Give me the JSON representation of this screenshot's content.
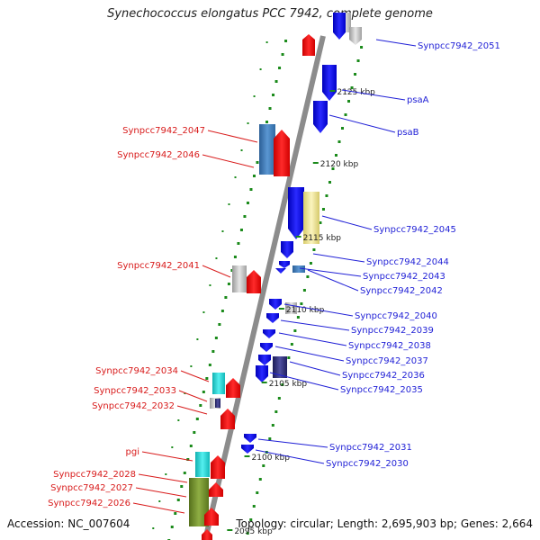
{
  "title": "Synechococcus elongatus PCC 7942, complete genome",
  "accession": "Accession: NC_007604",
  "topology": "Topology: circular; Length: 2,695,903 bp; Genes: 2,664",
  "colors": {
    "backbone": "#8c8c8c",
    "forward_label": "#1f1fd6",
    "reverse_label": "#d81b1b",
    "blue_gene": "#1212e6",
    "red_gene": "#ee1111",
    "gray_gene": "#bdbdbd",
    "steelblue_gene": "#3f7fbf",
    "yellow_gene": "#ece39a",
    "cyan_gene": "#22d4d4",
    "olive_gene": "#6f8f2a",
    "navy_gene": "#2a2a70",
    "tick_green": "#1a8a1a"
  },
  "scale_ticks": [
    {
      "label": "2125 kbp"
    },
    {
      "label": "2120 kbp"
    },
    {
      "label": "2115 kbp"
    },
    {
      "label": "2110 kbp"
    },
    {
      "label": "2105 kbp"
    },
    {
      "label": "2100 kbp"
    },
    {
      "label": "2095 kbp"
    }
  ],
  "forward_labels": [
    {
      "text": "Synpcc7942_2051"
    },
    {
      "text": "psaA"
    },
    {
      "text": "psaB"
    },
    {
      "text": "Synpcc7942_2045"
    },
    {
      "text": "Synpcc7942_2044"
    },
    {
      "text": "Synpcc7942_2043"
    },
    {
      "text": "Synpcc7942_2042"
    },
    {
      "text": "Synpcc7942_2040"
    },
    {
      "text": "Synpcc7942_2039"
    },
    {
      "text": "Synpcc7942_2038"
    },
    {
      "text": "Synpcc7942_2037"
    },
    {
      "text": "Synpcc7942_2036"
    },
    {
      "text": "Synpcc7942_2035"
    },
    {
      "text": "Synpcc7942_2031"
    },
    {
      "text": "Synpcc7942_2030"
    }
  ],
  "reverse_labels": [
    {
      "text": "Synpcc7942_2047"
    },
    {
      "text": "Synpcc7942_2046"
    },
    {
      "text": "Synpcc7942_2041"
    },
    {
      "text": "Synpcc7942_2034"
    },
    {
      "text": "Synpcc7942_2033"
    },
    {
      "text": "Synpcc7942_2032"
    },
    {
      "text": "pgi"
    },
    {
      "text": "Synpcc7942_2028"
    },
    {
      "text": "Synpcc7942_2027"
    },
    {
      "text": "Synpcc7942_2026"
    }
  ]
}
